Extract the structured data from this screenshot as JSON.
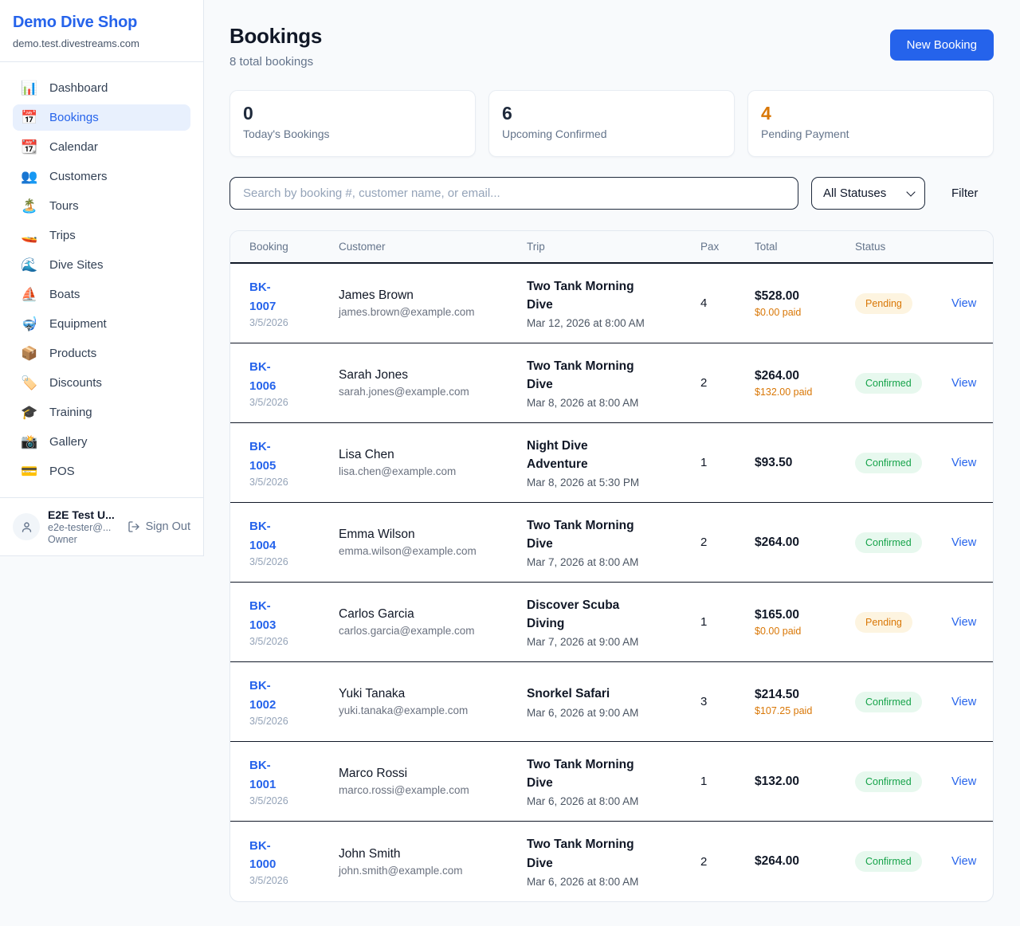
{
  "colors": {
    "accent_blue": "#2563eb",
    "pending_orange": "#d97706",
    "confirmed_green": "#16a34a",
    "page_background": "#f8fafc"
  },
  "sidebar": {
    "shop_name": "Demo Dive Shop",
    "domain": "demo.test.divestreams.com",
    "items": [
      {
        "label": "Dashboard",
        "icon": "📊",
        "icon_name": "bar-chart-icon",
        "active": false
      },
      {
        "label": "Bookings",
        "icon": "📅",
        "icon_name": "calendar-icon",
        "active": true
      },
      {
        "label": "Calendar",
        "icon": "📆",
        "icon_name": "tear-off-calendar-icon",
        "active": false
      },
      {
        "label": "Customers",
        "icon": "👥",
        "icon_name": "people-icon",
        "active": false
      },
      {
        "label": "Tours",
        "icon": "🏝️",
        "icon_name": "island-icon",
        "active": false
      },
      {
        "label": "Trips",
        "icon": "🚤",
        "icon_name": "speedboat-icon",
        "active": false
      },
      {
        "label": "Dive Sites",
        "icon": "🌊",
        "icon_name": "wave-icon",
        "active": false
      },
      {
        "label": "Boats",
        "icon": "⛵",
        "icon_name": "sailboat-icon",
        "active": false
      },
      {
        "label": "Equipment",
        "icon": "🤿",
        "icon_name": "diving-mask-icon",
        "active": false
      },
      {
        "label": "Products",
        "icon": "📦",
        "icon_name": "package-icon",
        "active": false
      },
      {
        "label": "Discounts",
        "icon": "🏷️",
        "icon_name": "tag-icon",
        "active": false
      },
      {
        "label": "Training",
        "icon": "🎓",
        "icon_name": "graduation-cap-icon",
        "active": false
      },
      {
        "label": "Gallery",
        "icon": "📸",
        "icon_name": "camera-icon",
        "active": false
      },
      {
        "label": "POS",
        "icon": "💳",
        "icon_name": "credit-card-icon",
        "active": false
      }
    ],
    "user": {
      "name": "E2E Test U...",
      "email": "e2e-tester@...",
      "role": "Owner",
      "sign_out_label": "Sign Out"
    }
  },
  "header": {
    "title": "Bookings",
    "subtitle": "8 total bookings",
    "new_booking_label": "New Booking"
  },
  "stats": [
    {
      "value": "0",
      "label": "Today's Bookings",
      "accent": null
    },
    {
      "value": "6",
      "label": "Upcoming Confirmed",
      "accent": null
    },
    {
      "value": "4",
      "label": "Pending Payment",
      "accent": "orange"
    }
  ],
  "filters": {
    "search_placeholder": "Search by booking #, customer name, or email...",
    "status_selected": "All Statuses",
    "filter_label": "Filter"
  },
  "table": {
    "columns": [
      "Booking",
      "Customer",
      "Trip",
      "Pax",
      "Total",
      "Status",
      ""
    ],
    "rows": [
      {
        "booking_id": "BK-1007",
        "booking_date": "3/5/2026",
        "customer_name": "James Brown",
        "customer_email": "james.brown@example.com",
        "trip_name": "Two Tank Morning Dive",
        "trip_datetime": "Mar 12, 2026 at 8:00 AM",
        "pax": "4",
        "total": "$528.00",
        "paid": "$0.00 paid",
        "status": "Pending",
        "action": "View"
      },
      {
        "booking_id": "BK-1006",
        "booking_date": "3/5/2026",
        "customer_name": "Sarah Jones",
        "customer_email": "sarah.jones@example.com",
        "trip_name": "Two Tank Morning Dive",
        "trip_datetime": "Mar 8, 2026 at 8:00 AM",
        "pax": "2",
        "total": "$264.00",
        "paid": "$132.00 paid",
        "status": "Confirmed",
        "action": "View"
      },
      {
        "booking_id": "BK-1005",
        "booking_date": "3/5/2026",
        "customer_name": "Lisa Chen",
        "customer_email": "lisa.chen@example.com",
        "trip_name": "Night Dive Adventure",
        "trip_datetime": "Mar 8, 2026 at 5:30 PM",
        "pax": "1",
        "total": "$93.50",
        "paid": null,
        "status": "Confirmed",
        "action": "View"
      },
      {
        "booking_id": "BK-1004",
        "booking_date": "3/5/2026",
        "customer_name": "Emma Wilson",
        "customer_email": "emma.wilson@example.com",
        "trip_name": "Two Tank Morning Dive",
        "trip_datetime": "Mar 7, 2026 at 8:00 AM",
        "pax": "2",
        "total": "$264.00",
        "paid": null,
        "status": "Confirmed",
        "action": "View"
      },
      {
        "booking_id": "BK-1003",
        "booking_date": "3/5/2026",
        "customer_name": "Carlos Garcia",
        "customer_email": "carlos.garcia@example.com",
        "trip_name": "Discover Scuba Diving",
        "trip_datetime": "Mar 7, 2026 at 9:00 AM",
        "pax": "1",
        "total": "$165.00",
        "paid": "$0.00 paid",
        "status": "Pending",
        "action": "View"
      },
      {
        "booking_id": "BK-1002",
        "booking_date": "3/5/2026",
        "customer_name": "Yuki Tanaka",
        "customer_email": "yuki.tanaka@example.com",
        "trip_name": "Snorkel Safari",
        "trip_datetime": "Mar 6, 2026 at 9:00 AM",
        "pax": "3",
        "total": "$214.50",
        "paid": "$107.25 paid",
        "status": "Confirmed",
        "action": "View"
      },
      {
        "booking_id": "BK-1001",
        "booking_date": "3/5/2026",
        "customer_name": "Marco Rossi",
        "customer_email": "marco.rossi@example.com",
        "trip_name": "Two Tank Morning Dive",
        "trip_datetime": "Mar 6, 2026 at 8:00 AM",
        "pax": "1",
        "total": "$132.00",
        "paid": null,
        "status": "Confirmed",
        "action": "View"
      },
      {
        "booking_id": "BK-1000",
        "booking_date": "3/5/2026",
        "customer_name": "John Smith",
        "customer_email": "john.smith@example.com",
        "trip_name": "Two Tank Morning Dive",
        "trip_datetime": "Mar 6, 2026 at 8:00 AM",
        "pax": "2",
        "total": "$264.00",
        "paid": null,
        "status": "Confirmed",
        "action": "View"
      }
    ]
  }
}
